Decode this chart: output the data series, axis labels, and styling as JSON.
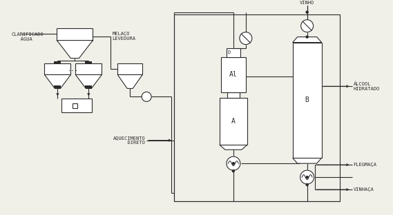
{
  "bg_color": "#f0efe8",
  "line_color": "#2a2a2a",
  "text_color": "#2a2a2a",
  "font_size": 5.0,
  "labels": {
    "clarificado_agua": "CLARIFICADO\n   ÁGUA",
    "melaco_levedura": "MELAÇO\nLEVEDURA",
    "aquecimento_direto": "AQUECIMENTO\n  DIRETO",
    "vinho": "VINHO",
    "alcool_hidratado": "ÁLCOOL\nHIDRATADO",
    "flegmaca": "FLEGMAÇA",
    "vinhaca": "VINHAÇA",
    "col_A": "A",
    "col_A1": "Al",
    "col_B": "B",
    "col_D": "D",
    "dots": "..."
  }
}
